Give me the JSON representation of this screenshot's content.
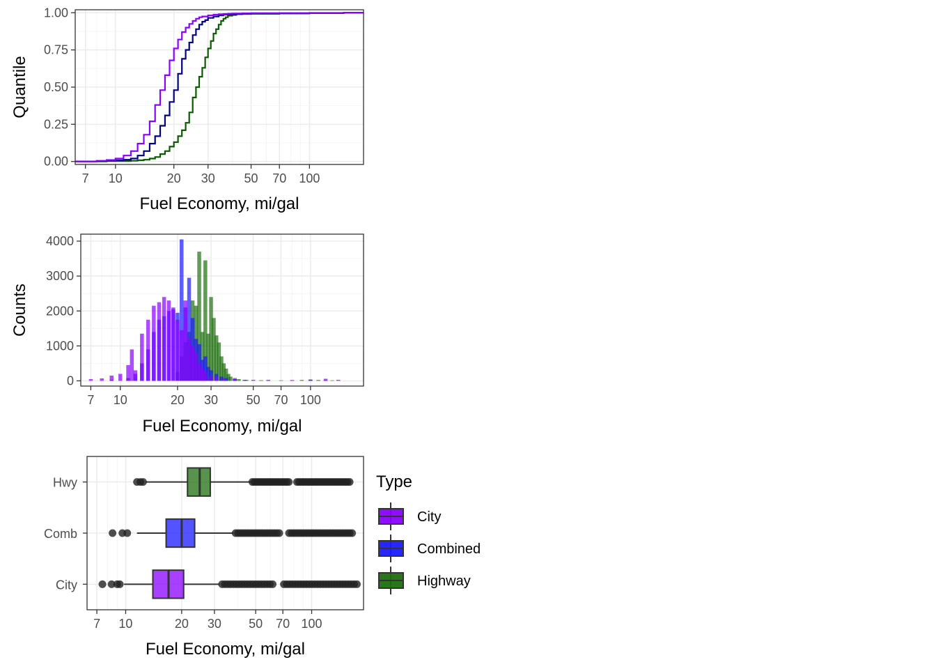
{
  "colors": {
    "city": "#8b00ff",
    "combined": "#1a1aff",
    "combined_line": "#000080",
    "highway": "#1f6f0f",
    "highway_line": "#0a5a00",
    "panel_border": "#333333",
    "grid_major": "#ebebeb",
    "grid_minor": "#f4f4f4",
    "outlier": "#222222"
  },
  "chart_data": [
    {
      "type": "line",
      "subtype": "ecdf-step",
      "xlabel": "Fuel Economy, mi/gal",
      "ylabel": "Quantile",
      "x_scale": "log10",
      "xlim": [
        6.2,
        190
      ],
      "ylim": [
        -0.02,
        1.02
      ],
      "x_ticks": [
        7,
        10,
        20,
        30,
        50,
        70,
        100
      ],
      "x_tick_labels": [
        "7",
        "10",
        "20",
        "30",
        "50",
        "70",
        "100"
      ],
      "y_ticks": [
        0,
        0.25,
        0.5,
        0.75,
        1.0
      ],
      "y_tick_labels": [
        "0.00",
        "0.25",
        "0.50",
        "0.75",
        "1.00"
      ],
      "series": [
        {
          "key": "highway",
          "x": [
            6.2,
            9,
            12,
            13,
            14,
            15,
            16,
            17,
            18,
            19,
            20,
            21,
            22,
            23,
            24,
            25,
            26,
            27,
            28,
            29,
            30,
            31,
            32,
            33,
            34,
            35,
            36,
            37,
            38,
            40,
            42,
            45,
            50,
            70,
            100,
            150,
            190
          ],
          "y": [
            0.0,
            0.003,
            0.005,
            0.008,
            0.012,
            0.02,
            0.03,
            0.05,
            0.07,
            0.1,
            0.13,
            0.17,
            0.21,
            0.26,
            0.33,
            0.43,
            0.5,
            0.57,
            0.63,
            0.7,
            0.76,
            0.81,
            0.86,
            0.89,
            0.92,
            0.945,
            0.96,
            0.97,
            0.98,
            0.985,
            0.99,
            0.992,
            0.993,
            0.995,
            0.997,
            1.0,
            1.0
          ]
        },
        {
          "key": "combined",
          "x": [
            6.2,
            8,
            9,
            10,
            11,
            12,
            13,
            14,
            15,
            16,
            17,
            18,
            19,
            20,
            21,
            22,
            23,
            24,
            25,
            26,
            27,
            28,
            29,
            30,
            32,
            34,
            36,
            38,
            40,
            45,
            50,
            70,
            100,
            150,
            190
          ],
          "y": [
            0.0,
            0.003,
            0.005,
            0.008,
            0.012,
            0.02,
            0.04,
            0.07,
            0.12,
            0.17,
            0.24,
            0.31,
            0.4,
            0.48,
            0.59,
            0.69,
            0.75,
            0.8,
            0.85,
            0.89,
            0.92,
            0.94,
            0.95,
            0.965,
            0.975,
            0.982,
            0.987,
            0.99,
            0.992,
            0.994,
            0.995,
            0.996,
            0.998,
            1.0,
            1.0
          ]
        },
        {
          "key": "city",
          "x": [
            6.2,
            8,
            9,
            10,
            11,
            12,
            13,
            14,
            15,
            16,
            17,
            18,
            19,
            20,
            21,
            22,
            23,
            24,
            25,
            26,
            27,
            28,
            30,
            32,
            34,
            36,
            38,
            40,
            45,
            50,
            70,
            100,
            150,
            190
          ],
          "y": [
            0.0,
            0.005,
            0.01,
            0.02,
            0.04,
            0.07,
            0.12,
            0.18,
            0.27,
            0.38,
            0.48,
            0.58,
            0.68,
            0.76,
            0.82,
            0.87,
            0.9,
            0.925,
            0.945,
            0.96,
            0.97,
            0.975,
            0.982,
            0.987,
            0.99,
            0.992,
            0.994,
            0.995,
            0.996,
            0.997,
            0.998,
            0.999,
            1.0,
            1.0
          ]
        }
      ]
    },
    {
      "type": "bar",
      "subtype": "histogram-overlay",
      "xlabel": "Fuel Economy, mi/gal",
      "ylabel": "Counts",
      "x_scale": "log10",
      "xlim": [
        6.2,
        190
      ],
      "ylim": [
        -150,
        4200
      ],
      "x_ticks": [
        7,
        10,
        20,
        30,
        50,
        70,
        100
      ],
      "x_tick_labels": [
        "7",
        "10",
        "20",
        "30",
        "50",
        "70",
        "100"
      ],
      "y_ticks": [
        0,
        1000,
        2000,
        3000,
        4000
      ],
      "y_tick_labels": [
        "0",
        "1000",
        "2000",
        "3000",
        "4000"
      ],
      "bin_log_width": 0.02,
      "series": [
        {
          "key": "highway",
          "bins": [
            [
              20,
              250
            ],
            [
              21,
              700
            ],
            [
              22,
              1100
            ],
            [
              23,
              1400
            ],
            [
              24,
              2300
            ],
            [
              25,
              2150
            ],
            [
              26,
              3700
            ],
            [
              27,
              1400
            ],
            [
              28,
              3450
            ],
            [
              29,
              1350
            ],
            [
              30,
              2400
            ],
            [
              31,
              1800
            ],
            [
              32,
              1300
            ],
            [
              33,
              1100
            ],
            [
              34,
              700
            ],
            [
              35,
              500
            ],
            [
              36,
              350
            ],
            [
              37,
              200
            ],
            [
              38,
              120
            ],
            [
              40,
              80
            ],
            [
              42,
              50
            ],
            [
              46,
              30
            ],
            [
              55,
              20
            ],
            [
              70,
              15
            ],
            [
              90,
              25
            ],
            [
              100,
              40
            ],
            [
              110,
              25
            ],
            [
              130,
              15
            ]
          ]
        },
        {
          "key": "combined",
          "bins": [
            [
              9,
              30
            ],
            [
              11,
              80
            ],
            [
              12,
              200
            ],
            [
              13,
              500
            ],
            [
              14,
              900
            ],
            [
              15,
              1400
            ],
            [
              16,
              1750
            ],
            [
              17,
              1850
            ],
            [
              18,
              2000
            ],
            [
              19,
              2050
            ],
            [
              20,
              1950
            ],
            [
              21,
              4050
            ],
            [
              22,
              2100
            ],
            [
              23,
              2950
            ],
            [
              24,
              1800
            ],
            [
              25,
              1200
            ],
            [
              26,
              1050
            ],
            [
              27,
              600
            ],
            [
              28,
              700
            ],
            [
              29,
              400
            ],
            [
              30,
              300
            ],
            [
              32,
              200
            ],
            [
              34,
              120
            ],
            [
              36,
              80
            ],
            [
              40,
              50
            ],
            [
              45,
              30
            ],
            [
              60,
              20
            ],
            [
              80,
              20
            ],
            [
              100,
              25
            ],
            [
              120,
              20
            ]
          ]
        },
        {
          "key": "city",
          "bins": [
            [
              7,
              50
            ],
            [
              8,
              70
            ],
            [
              9,
              150
            ],
            [
              10,
              200
            ],
            [
              11,
              450
            ],
            [
              11.5,
              900
            ],
            [
              12,
              300
            ],
            [
              13,
              1350
            ],
            [
              14,
              1750
            ],
            [
              15,
              2150
            ],
            [
              16,
              2250
            ],
            [
              17,
              2400
            ],
            [
              18,
              2300
            ],
            [
              19,
              2100
            ],
            [
              20,
              1750
            ],
            [
              21,
              1450
            ],
            [
              22,
              2300
            ],
            [
              23,
              1200
            ],
            [
              24,
              1000
            ],
            [
              25,
              800
            ],
            [
              26,
              500
            ],
            [
              27,
              350
            ],
            [
              28,
              250
            ],
            [
              30,
              150
            ],
            [
              32,
              100
            ],
            [
              35,
              70
            ],
            [
              40,
              50
            ],
            [
              50,
              30
            ],
            [
              60,
              25
            ],
            [
              80,
              20
            ],
            [
              100,
              25
            ],
            [
              120,
              60
            ],
            [
              140,
              30
            ]
          ]
        }
      ]
    },
    {
      "type": "boxplot",
      "xlabel": "Fuel Economy, mi/gal",
      "ylabel": "",
      "x_scale": "log10",
      "xlim": [
        6.2,
        190
      ],
      "x_ticks": [
        7,
        10,
        20,
        30,
        50,
        70,
        100
      ],
      "x_tick_labels": [
        "7",
        "10",
        "20",
        "30",
        "50",
        "70",
        "100"
      ],
      "categories": [
        "Hwy",
        "Comb",
        "City"
      ],
      "series": [
        {
          "key": "highway",
          "category": "Hwy",
          "whisker_low": 12.8,
          "q1": 21.5,
          "median": 25,
          "q3": 28.5,
          "whisker_high": 47,
          "outliers_low": [
            11.5,
            12,
            12.4
          ],
          "outliers_high_range": [
            48,
            160
          ]
        },
        {
          "key": "combined",
          "category": "Comb",
          "whisker_low": 11.5,
          "q1": 16.5,
          "median": 20,
          "q3": 23.5,
          "whisker_high": 38,
          "outliers_low": [
            8.5,
            9.6,
            10.2
          ],
          "outliers_high_range": [
            39,
            165
          ]
        },
        {
          "key": "city",
          "category": "City",
          "whisker_low": 9.8,
          "q1": 14,
          "median": 17,
          "q3": 20.5,
          "whisker_high": 32,
          "outliers_low": [
            7.5,
            8.4,
            9,
            9.3
          ],
          "outliers_high_range": [
            33,
            175
          ]
        }
      ]
    }
  ],
  "legend": {
    "title": "Type",
    "placement": "right",
    "items": [
      {
        "key": "city",
        "label": "City"
      },
      {
        "key": "combined",
        "label": "Combined"
      },
      {
        "key": "highway",
        "label": "Highway"
      }
    ]
  }
}
